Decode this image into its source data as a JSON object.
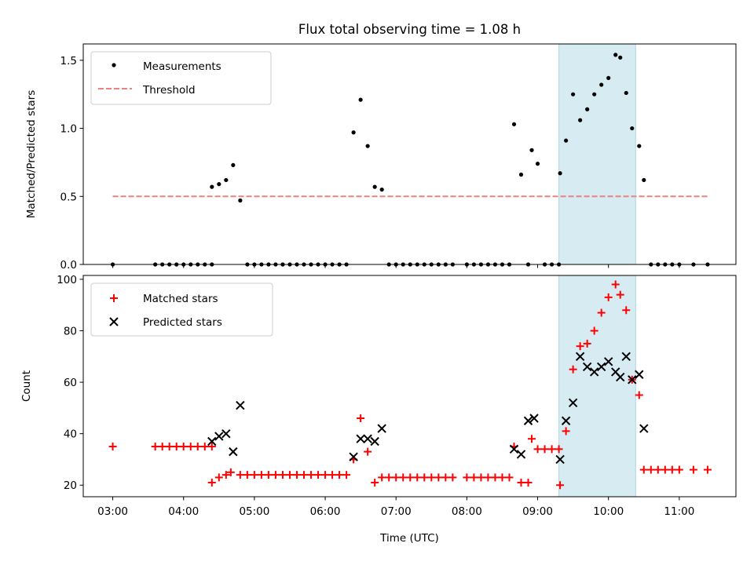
{
  "chart_data": [
    {
      "type": "scatter",
      "title": "Flux total observing time = 1.08 h",
      "xlabel": "",
      "ylabel": "Matched/Predicted stars",
      "xlim": [
        "02:35",
        "11:48"
      ],
      "ylim": [
        0,
        1.62
      ],
      "yticks": [
        0.0,
        0.5,
        1.0,
        1.5
      ],
      "ytick_labels": [
        "0.0",
        "0.5",
        "1.0",
        "1.5"
      ],
      "grid": false,
      "legend_position": "upper left",
      "highlight_span": [
        "09:18",
        "10:23"
      ],
      "highlight_color": "#add8e6",
      "series": [
        {
          "name": "Measurements",
          "kind": "scatter",
          "marker": "dot",
          "color": "#000000",
          "points": [
            [
              "03:00",
              0
            ],
            [
              "03:36",
              0
            ],
            [
              "03:42",
              0
            ],
            [
              "03:48",
              0
            ],
            [
              "03:54",
              0
            ],
            [
              "04:00",
              0
            ],
            [
              "04:06",
              0
            ],
            [
              "04:12",
              0
            ],
            [
              "04:18",
              0
            ],
            [
              "04:24",
              0
            ],
            [
              "04:24",
              0.57
            ],
            [
              "04:30",
              0.59
            ],
            [
              "04:36",
              0.62
            ],
            [
              "04:42",
              0.73
            ],
            [
              "04:48",
              0.47
            ],
            [
              "04:54",
              0
            ],
            [
              "05:00",
              0
            ],
            [
              "05:06",
              0
            ],
            [
              "05:12",
              0
            ],
            [
              "05:18",
              0
            ],
            [
              "05:24",
              0
            ],
            [
              "05:30",
              0
            ],
            [
              "05:36",
              0
            ],
            [
              "05:42",
              0
            ],
            [
              "05:48",
              0
            ],
            [
              "05:54",
              0
            ],
            [
              "06:00",
              0
            ],
            [
              "06:06",
              0
            ],
            [
              "06:12",
              0
            ],
            [
              "06:18",
              0
            ],
            [
              "06:24",
              0.97
            ],
            [
              "06:30",
              1.21
            ],
            [
              "06:36",
              0.87
            ],
            [
              "06:42",
              0.57
            ],
            [
              "06:48",
              0.55
            ],
            [
              "06:54",
              0
            ],
            [
              "07:00",
              0
            ],
            [
              "07:06",
              0
            ],
            [
              "07:12",
              0
            ],
            [
              "07:18",
              0
            ],
            [
              "07:24",
              0
            ],
            [
              "07:30",
              0
            ],
            [
              "07:36",
              0
            ],
            [
              "07:42",
              0
            ],
            [
              "07:48",
              0
            ],
            [
              "08:00",
              0
            ],
            [
              "08:06",
              0
            ],
            [
              "08:12",
              0
            ],
            [
              "08:18",
              0
            ],
            [
              "08:24",
              0
            ],
            [
              "08:30",
              0
            ],
            [
              "08:36",
              0
            ],
            [
              "08:40",
              1.03
            ],
            [
              "08:46",
              0.66
            ],
            [
              "08:52",
              0
            ],
            [
              "08:55",
              0.84
            ],
            [
              "09:00",
              0.74
            ],
            [
              "09:06",
              0
            ],
            [
              "09:12",
              0
            ],
            [
              "09:18",
              0
            ],
            [
              "09:19",
              0.67
            ],
            [
              "09:24",
              0.91
            ],
            [
              "09:30",
              1.25
            ],
            [
              "09:36",
              1.06
            ],
            [
              "09:42",
              1.14
            ],
            [
              "09:48",
              1.25
            ],
            [
              "09:54",
              1.32
            ],
            [
              "10:00",
              1.37
            ],
            [
              "10:06",
              1.54
            ],
            [
              "10:10",
              1.52
            ],
            [
              "10:15",
              1.26
            ],
            [
              "10:20",
              1.0
            ],
            [
              "10:26",
              0.87
            ],
            [
              "10:30",
              0.62
            ],
            [
              "10:36",
              0
            ],
            [
              "10:42",
              0
            ],
            [
              "10:48",
              0
            ],
            [
              "10:54",
              0
            ],
            [
              "11:00",
              0
            ],
            [
              "11:12",
              0
            ],
            [
              "11:24",
              0
            ]
          ]
        },
        {
          "name": "Threshold",
          "kind": "line",
          "style": "dashed",
          "color": "#f08080",
          "points": [
            [
              "03:00",
              0.5
            ],
            [
              "11:24",
              0.5
            ]
          ]
        }
      ]
    },
    {
      "type": "scatter",
      "title": "",
      "xlabel": "Time (UTC)",
      "ylabel": "Count",
      "xlim": [
        "02:35",
        "11:48"
      ],
      "xticks": [
        "03:00",
        "04:00",
        "05:00",
        "06:00",
        "07:00",
        "08:00",
        "09:00",
        "10:00",
        "11:00"
      ],
      "ylim": [
        15.5,
        101.5
      ],
      "yticks": [
        20,
        40,
        60,
        80,
        100
      ],
      "ytick_labels": [
        "20",
        "40",
        "60",
        "80",
        "100"
      ],
      "grid": false,
      "legend_position": "upper left",
      "highlight_span": [
        "09:18",
        "10:23"
      ],
      "highlight_color": "#add8e6",
      "series": [
        {
          "name": "Matched stars",
          "kind": "scatter",
          "marker": "plus",
          "color": "#ff0000",
          "points": [
            [
              "03:00",
              35
            ],
            [
              "03:36",
              35
            ],
            [
              "03:42",
              35
            ],
            [
              "03:48",
              35
            ],
            [
              "03:54",
              35
            ],
            [
              "04:00",
              35
            ],
            [
              "04:06",
              35
            ],
            [
              "04:12",
              35
            ],
            [
              "04:18",
              35
            ],
            [
              "04:24",
              35
            ],
            [
              "04:24",
              21
            ],
            [
              "04:30",
              23
            ],
            [
              "04:36",
              24
            ],
            [
              "04:40",
              25
            ],
            [
              "04:48",
              24
            ],
            [
              "04:54",
              24
            ],
            [
              "05:00",
              24
            ],
            [
              "05:06",
              24
            ],
            [
              "05:12",
              24
            ],
            [
              "05:18",
              24
            ],
            [
              "05:24",
              24
            ],
            [
              "05:30",
              24
            ],
            [
              "05:36",
              24
            ],
            [
              "05:42",
              24
            ],
            [
              "05:48",
              24
            ],
            [
              "05:54",
              24
            ],
            [
              "06:00",
              24
            ],
            [
              "06:06",
              24
            ],
            [
              "06:12",
              24
            ],
            [
              "06:18",
              24
            ],
            [
              "06:24",
              30
            ],
            [
              "06:30",
              46
            ],
            [
              "06:36",
              33
            ],
            [
              "06:42",
              21
            ],
            [
              "06:48",
              23
            ],
            [
              "06:54",
              23
            ],
            [
              "07:00",
              23
            ],
            [
              "07:06",
              23
            ],
            [
              "07:12",
              23
            ],
            [
              "07:18",
              23
            ],
            [
              "07:24",
              23
            ],
            [
              "07:30",
              23
            ],
            [
              "07:36",
              23
            ],
            [
              "07:42",
              23
            ],
            [
              "07:48",
              23
            ],
            [
              "08:00",
              23
            ],
            [
              "08:06",
              23
            ],
            [
              "08:12",
              23
            ],
            [
              "08:18",
              23
            ],
            [
              "08:24",
              23
            ],
            [
              "08:30",
              23
            ],
            [
              "08:36",
              23
            ],
            [
              "08:40",
              35
            ],
            [
              "08:46",
              21
            ],
            [
              "08:52",
              21
            ],
            [
              "08:55",
              38
            ],
            [
              "09:00",
              34
            ],
            [
              "09:06",
              34
            ],
            [
              "09:12",
              34
            ],
            [
              "09:18",
              34
            ],
            [
              "09:19",
              20
            ],
            [
              "09:24",
              41
            ],
            [
              "09:30",
              65
            ],
            [
              "09:36",
              74
            ],
            [
              "09:42",
              75
            ],
            [
              "09:48",
              80
            ],
            [
              "09:54",
              87
            ],
            [
              "10:00",
              93
            ],
            [
              "10:06",
              98
            ],
            [
              "10:10",
              94
            ],
            [
              "10:15",
              88
            ],
            [
              "10:20",
              61
            ],
            [
              "10:26",
              55
            ],
            [
              "10:30",
              26
            ],
            [
              "10:36",
              26
            ],
            [
              "10:42",
              26
            ],
            [
              "10:48",
              26
            ],
            [
              "10:54",
              26
            ],
            [
              "11:00",
              26
            ],
            [
              "11:12",
              26
            ],
            [
              "11:24",
              26
            ]
          ]
        },
        {
          "name": "Predicted stars",
          "kind": "scatter",
          "marker": "x",
          "color": "#000000",
          "points": [
            [
              "04:24",
              37
            ],
            [
              "04:30",
              39
            ],
            [
              "04:36",
              40
            ],
            [
              "04:42",
              33
            ],
            [
              "04:48",
              51
            ],
            [
              "06:24",
              31
            ],
            [
              "06:30",
              38
            ],
            [
              "06:36",
              38
            ],
            [
              "06:42",
              37
            ],
            [
              "06:48",
              42
            ],
            [
              "08:40",
              34
            ],
            [
              "08:46",
              32
            ],
            [
              "08:52",
              45
            ],
            [
              "08:57",
              46
            ],
            [
              "09:19",
              30
            ],
            [
              "09:24",
              45
            ],
            [
              "09:30",
              52
            ],
            [
              "09:36",
              70
            ],
            [
              "09:42",
              66
            ],
            [
              "09:48",
              64
            ],
            [
              "09:54",
              66
            ],
            [
              "10:00",
              68
            ],
            [
              "10:06",
              64
            ],
            [
              "10:10",
              62
            ],
            [
              "10:15",
              70
            ],
            [
              "10:20",
              61
            ],
            [
              "10:26",
              63
            ],
            [
              "10:30",
              42
            ]
          ]
        }
      ]
    }
  ]
}
